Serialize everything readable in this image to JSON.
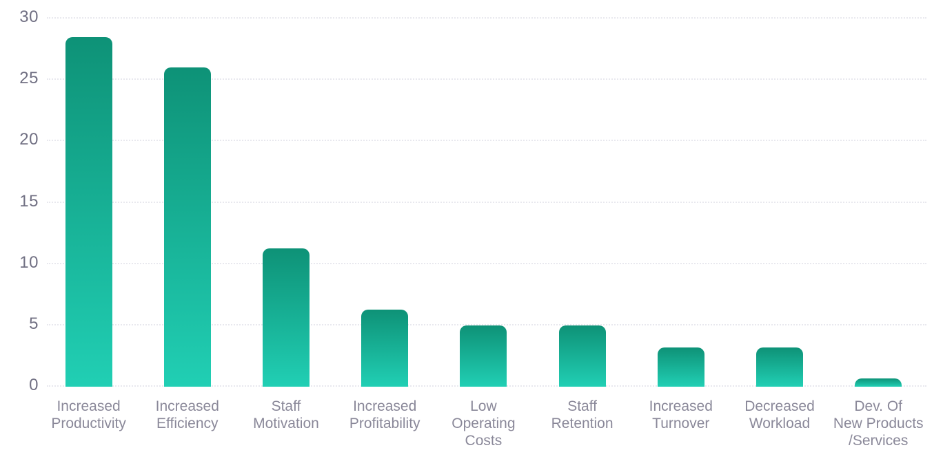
{
  "chart_data": {
    "type": "bar",
    "title": "",
    "xlabel": "",
    "ylabel": "",
    "legend_position": "none",
    "grid": "horizontal-dotted",
    "ylim": [
      0,
      30
    ],
    "y_ticks": [
      0,
      5,
      10,
      15,
      20,
      25,
      30
    ],
    "categories": [
      "Increased\nProductivity",
      "Increased\nEfficiency",
      "Staff\nMotivation",
      "Increased\nProfitability",
      "Low\nOperating\nCosts",
      "Staff\nRetention",
      "Increased\nTurnover",
      "Decreased\nWorkload",
      "Dev. Of\nNew Products\n/Services"
    ],
    "values": [
      28.5,
      26,
      11.3,
      6.3,
      5,
      5,
      3.2,
      3.2,
      0.7
    ],
    "colors": {
      "bar_gradient_top": "#0E9277",
      "bar_gradient_bottom": "#21CFB4",
      "gridline": "#E8E8EE",
      "y_tick_label": "#717083",
      "x_tick_label": "#8A8899",
      "background": "#FFFFFF"
    }
  }
}
